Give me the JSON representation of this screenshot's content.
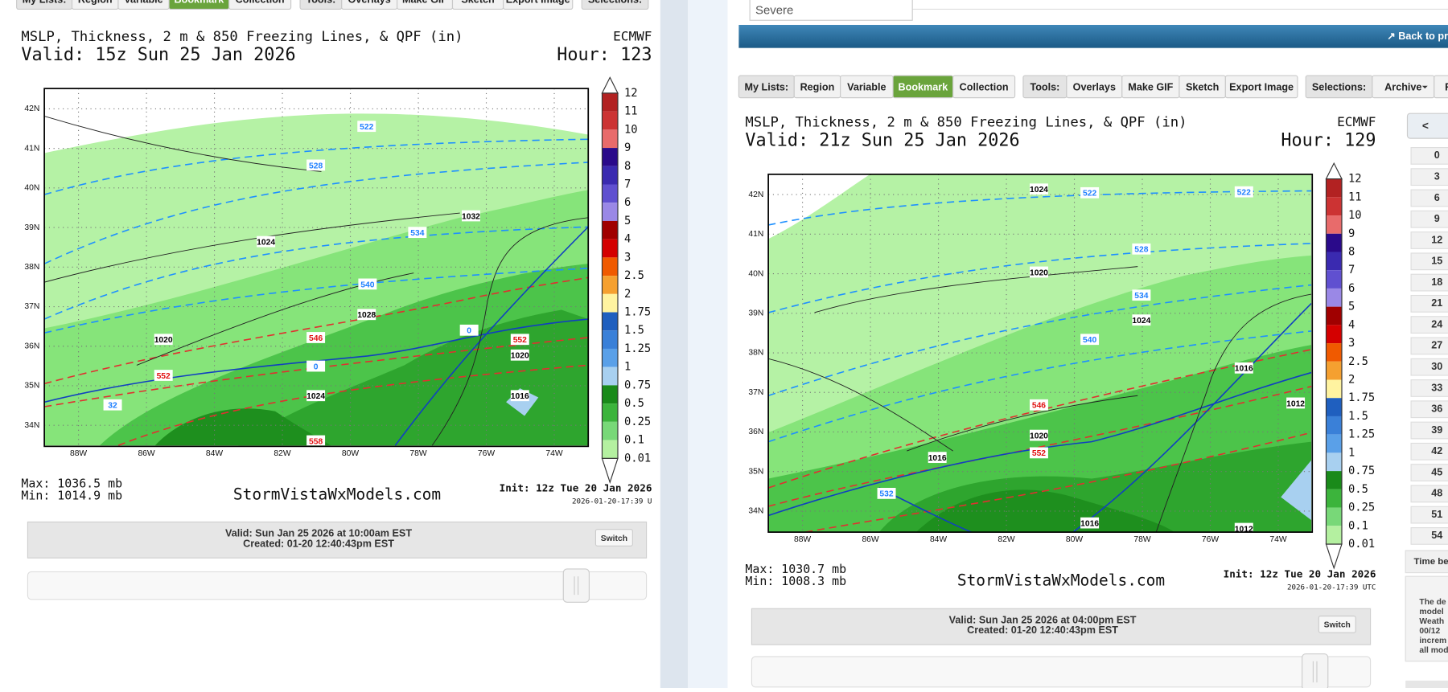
{
  "left": {
    "toolbar": [
      "My Lists:",
      "Region",
      "Variable",
      "Bookmark",
      "Collection",
      "Tools:",
      "Overlays",
      "Make GIF",
      "Sketch",
      "Export Image",
      "Selections:"
    ],
    "map": {
      "title": "MSLP, Thickness, 2 m & 850 Freezing Lines, & QPF (in)",
      "model": "ECMWF",
      "valid": "Valid: 15z Sun 25 Jan 2026",
      "hour": "Hour: 123",
      "lat_labels": [
        "42N",
        "41N",
        "40N",
        "39N",
        "38N",
        "37N",
        "36N",
        "35N",
        "34N"
      ],
      "lon_labels": [
        "88W",
        "86W",
        "84W",
        "82W",
        "80W",
        "78W",
        "76W",
        "74W"
      ],
      "legend": [
        12,
        11,
        10,
        9,
        8,
        7,
        6,
        5,
        4,
        3,
        2.5,
        2,
        1.75,
        1.5,
        1.25,
        1,
        0.75,
        0.5,
        0.25,
        0.1,
        0.01
      ],
      "contours": [
        522,
        528,
        534,
        540,
        546,
        552,
        552,
        558,
        1032,
        1024,
        1028,
        1020,
        1020,
        1024,
        1016,
        0,
        0,
        32
      ],
      "max": "Max: 1036.5 mb",
      "min": "Min: 1014.9 mb",
      "site": "StormVistaWxModels.com",
      "init": "Init: 12z Tue 20 Jan 2026",
      "stamp": "2026-01-20-17:39 U"
    },
    "info": {
      "valid": "Valid: Sun Jan 25 2026 at 10:00am EST",
      "created": "Created: 01-20 12:40:43pm EST",
      "switch": "Switch"
    }
  },
  "right": {
    "search": "Severe",
    "back_link": "↗ Back to pre",
    "toolbar": [
      "My Lists:",
      "Region",
      "Variable",
      "Bookmark",
      "Collection",
      "Tools:",
      "Overlays",
      "Make GIF",
      "Sketch",
      "Export Image",
      "Selections:",
      "Archive",
      "F"
    ],
    "map": {
      "title": "MSLP, Thickness, 2 m & 850 Freezing Lines, & QPF (in)",
      "model": "ECMWF",
      "valid": "Valid: 21z Sun 25 Jan 2026",
      "hour": "Hour: 129",
      "lat_labels": [
        "42N",
        "41N",
        "40N",
        "39N",
        "38N",
        "37N",
        "36N",
        "35N",
        "34N"
      ],
      "lon_labels": [
        "88W",
        "86W",
        "84W",
        "82W",
        "80W",
        "78W",
        "76W",
        "74W"
      ],
      "legend": [
        12,
        11,
        10,
        9,
        8,
        7,
        6,
        5,
        4,
        3,
        2.5,
        2,
        1.75,
        1.5,
        1.25,
        1,
        0.75,
        0.5,
        0.25,
        0.1,
        0.01
      ],
      "contours": [
        522,
        522,
        528,
        534,
        540,
        546,
        552,
        1024,
        1020,
        1024,
        1016,
        1012,
        1020,
        1016,
        1016,
        1012,
        532
      ],
      "max": "Max: 1030.7 mb",
      "min": "Min: 1008.3 mb",
      "site": "StormVistaWxModels.com",
      "init": "Init: 12z Tue 20 Jan 2026",
      "stamp": "2026-01-20-17:39 UTC"
    },
    "info": {
      "valid": "Valid: Sun Jan 25 2026 at 04:00pm EST",
      "created": "Created: 01-20 12:40:43pm EST",
      "switch": "Switch"
    },
    "side": {
      "prev": "<",
      "hours": [
        0,
        3,
        6,
        9,
        12,
        15,
        18,
        21,
        24,
        27,
        30,
        33,
        36,
        39,
        42,
        45,
        48,
        51,
        54
      ],
      "time_label": "Time be",
      "note": [
        "The de",
        "model",
        "Weath",
        "00/12",
        "increm",
        "all mod"
      ]
    }
  }
}
